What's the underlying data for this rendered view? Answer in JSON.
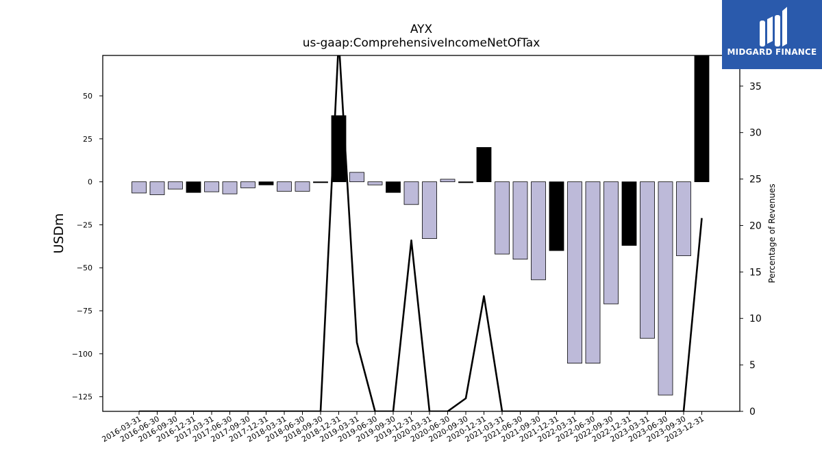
{
  "header": {
    "title": "AYX",
    "subtitle": "us-gaap:ComprehensiveIncomeNetOfTax"
  },
  "logo": {
    "text": "MIDGARD FINANCE",
    "color": "#2a5aac"
  },
  "chart_data": {
    "type": "bar",
    "title": "AYX",
    "subtitle": "us-gaap:ComprehensiveIncomeNetOfTax",
    "ylabel": "USDm",
    "y2label": "Percentage of Revenues",
    "ylim": [
      -133.5,
      73.5
    ],
    "y2lim": [
      0,
      38.3
    ],
    "yticks": [
      50,
      25,
      0,
      -25,
      -50,
      -75,
      -100,
      -125
    ],
    "y2ticks": [
      0,
      5,
      10,
      15,
      20,
      25,
      30,
      35
    ],
    "categories": [
      "2016-03-31",
      "2016-06-30",
      "2016-09-30",
      "2016-12-31",
      "2017-03-31",
      "2017-06-30",
      "2017-09-30",
      "2017-12-31",
      "2018-03-31",
      "2018-06-30",
      "2018-09-30",
      "2018-12-31",
      "2019-03-31",
      "2019-06-30",
      "2019-09-30",
      "2019-12-31",
      "2020-03-31",
      "2020-06-30",
      "2020-09-30",
      "2020-12-31",
      "2021-03-31",
      "2021-06-30",
      "2021-09-30",
      "2021-12-31",
      "2022-03-31",
      "2022-06-30",
      "2022-09-30",
      "2022-12-31",
      "2023-03-31",
      "2023-06-30",
      "2023-09-30",
      "2023-12-31"
    ],
    "series": [
      {
        "values": [
          -6.5,
          -7.5,
          -4.2,
          -6.2,
          -5.8,
          -7.0,
          -3.5,
          -1.8,
          -5.5,
          -5.5,
          -0.5,
          38.5,
          5.5,
          -1.8,
          -6.2,
          -13.2,
          -33.0,
          1.5,
          -0.5,
          20.0,
          -42.0,
          -45.0,
          -57.0,
          -40.0,
          -105.5,
          -105.5,
          -71.0,
          -37.0,
          -91.0,
          -124.0,
          -43.0,
          73.5
        ],
        "highlight": [
          false,
          false,
          false,
          true,
          false,
          false,
          false,
          true,
          false,
          false,
          true,
          true,
          false,
          false,
          true,
          false,
          false,
          false,
          true,
          true,
          false,
          false,
          false,
          true,
          false,
          false,
          false,
          true,
          false,
          false,
          false,
          true
        ]
      }
    ],
    "line_values": [
      0,
      0,
      0,
      0,
      0,
      0,
      0,
      0,
      0,
      0,
      0,
      40,
      7.4,
      0,
      0,
      18.4,
      0,
      0,
      1.4,
      12.4,
      0,
      0,
      0,
      0,
      0,
      0,
      0,
      0,
      0,
      0,
      0,
      20.8
    ],
    "colors": {
      "bar": "#bdbad9",
      "highlight": "#000000",
      "line": "#000000"
    },
    "grid": false
  }
}
